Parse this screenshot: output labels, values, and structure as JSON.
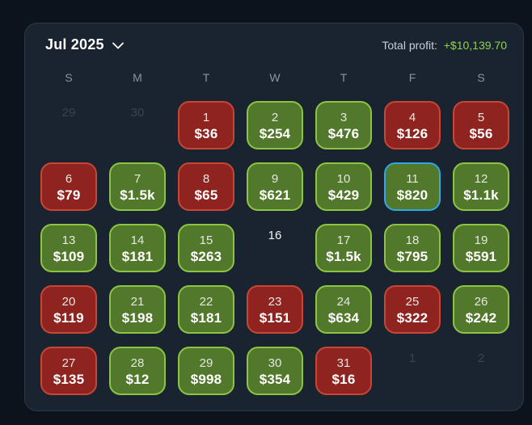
{
  "header": {
    "title": "Jul 2025",
    "total_label": "Total profit:",
    "total_value": "+$10,139.70"
  },
  "weekdays": [
    "S",
    "M",
    "T",
    "W",
    "T",
    "F",
    "S"
  ],
  "weeks": [
    [
      {
        "day": "29",
        "type": "muted"
      },
      {
        "day": "30",
        "type": "muted"
      },
      {
        "day": "1",
        "value": "$36",
        "type": "loss"
      },
      {
        "day": "2",
        "value": "$254",
        "type": "profit"
      },
      {
        "day": "3",
        "value": "$476",
        "type": "profit"
      },
      {
        "day": "4",
        "value": "$126",
        "type": "loss"
      },
      {
        "day": "5",
        "value": "$56",
        "type": "loss"
      }
    ],
    [
      {
        "day": "6",
        "value": "$79",
        "type": "loss"
      },
      {
        "day": "7",
        "value": "$1.5k",
        "type": "profit"
      },
      {
        "day": "8",
        "value": "$65",
        "type": "loss"
      },
      {
        "day": "9",
        "value": "$621",
        "type": "profit"
      },
      {
        "day": "10",
        "value": "$429",
        "type": "profit"
      },
      {
        "day": "11",
        "value": "$820",
        "type": "profit",
        "selected": true
      },
      {
        "day": "12",
        "value": "$1.1k",
        "type": "profit"
      }
    ],
    [
      {
        "day": "13",
        "value": "$109",
        "type": "profit"
      },
      {
        "day": "14",
        "value": "$181",
        "type": "profit"
      },
      {
        "day": "15",
        "value": "$263",
        "type": "profit"
      },
      {
        "day": "16",
        "type": "none"
      },
      {
        "day": "17",
        "value": "$1.5k",
        "type": "profit"
      },
      {
        "day": "18",
        "value": "$795",
        "type": "profit"
      },
      {
        "day": "19",
        "value": "$591",
        "type": "profit"
      }
    ],
    [
      {
        "day": "20",
        "value": "$119",
        "type": "loss"
      },
      {
        "day": "21",
        "value": "$198",
        "type": "profit"
      },
      {
        "day": "22",
        "value": "$181",
        "type": "profit"
      },
      {
        "day": "23",
        "value": "$151",
        "type": "loss"
      },
      {
        "day": "24",
        "value": "$634",
        "type": "profit"
      },
      {
        "day": "25",
        "value": "$322",
        "type": "loss"
      },
      {
        "day": "26",
        "value": "$242",
        "type": "profit"
      }
    ],
    [
      {
        "day": "27",
        "value": "$135",
        "type": "loss"
      },
      {
        "day": "28",
        "value": "$12",
        "type": "profit"
      },
      {
        "day": "29",
        "value": "$998",
        "type": "profit"
      },
      {
        "day": "30",
        "value": "$354",
        "type": "profit"
      },
      {
        "day": "31",
        "value": "$16",
        "type": "loss"
      },
      {
        "day": "1",
        "type": "muted"
      },
      {
        "day": "2",
        "type": "muted"
      }
    ]
  ],
  "colors": {
    "page-bg": "#0c131c",
    "panel-bg": "#1a2431",
    "panel-border": "#2b3847",
    "profit-fill": "#52782b",
    "profit-border": "#8cc542",
    "loss-fill": "#8e231f",
    "loss-border": "#c74634",
    "selected-border": "#2ea9e2",
    "total-green": "#90cf50",
    "weekday-text": "#8a93a3",
    "muted-text": "#3a4450",
    "day-text": "#e4e8e1"
  }
}
